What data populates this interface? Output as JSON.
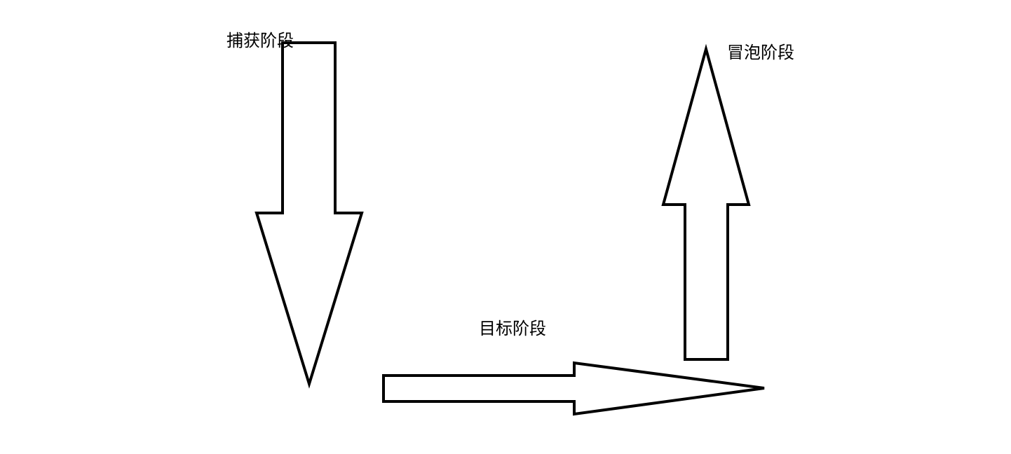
{
  "diagram": {
    "stages": [
      {
        "id": "capture",
        "label": "捕获阶段",
        "direction": "down"
      },
      {
        "id": "target",
        "label": "目标阶段",
        "direction": "right"
      },
      {
        "id": "bubble",
        "label": "冒泡阶段",
        "direction": "up"
      }
    ],
    "colors": {
      "stroke": "#000000",
      "fill": "#ffffff",
      "background": "#ffffff"
    }
  }
}
